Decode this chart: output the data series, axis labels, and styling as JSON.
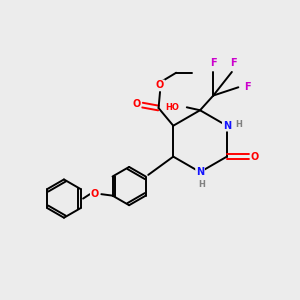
{
  "bg_color": "#ececec",
  "atom_colors": {
    "C": "#000000",
    "N": "#1414ff",
    "O": "#ff0000",
    "F": "#cc00cc",
    "H": "#808080"
  },
  "figsize": [
    3.0,
    3.0
  ],
  "dpi": 100
}
